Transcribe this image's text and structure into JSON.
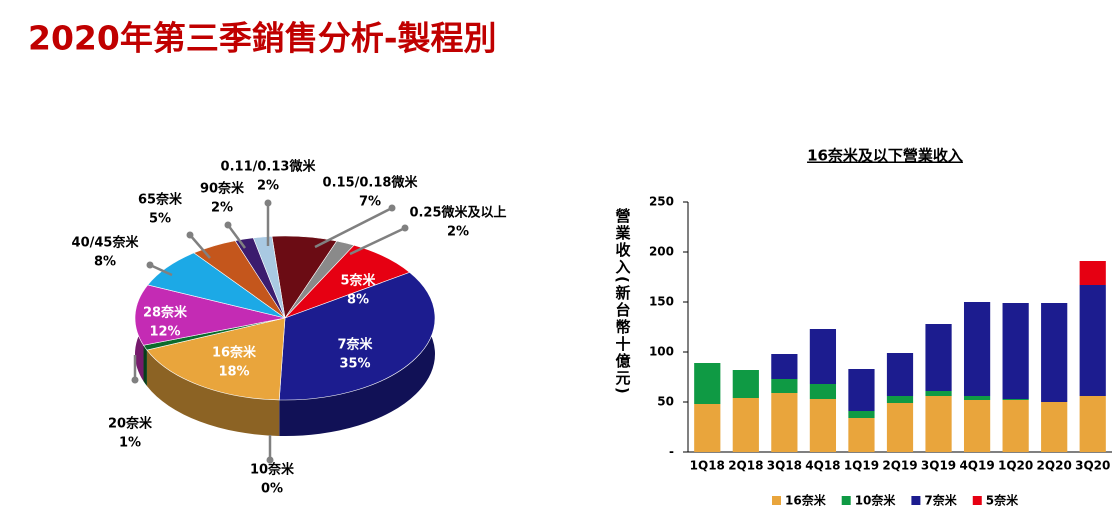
{
  "title": "2020年第三季銷售分析-製程別",
  "chart_data": [
    {
      "type": "pie",
      "categories": [
        "0.15/0.18微米",
        "0.25微米及以上",
        "5奈米",
        "7奈米",
        "16奈米",
        "20奈米",
        "10奈米",
        "28奈米",
        "40/45奈米",
        "65奈米",
        "90奈米",
        "0.11/0.13微米"
      ],
      "values": [
        7,
        2,
        8,
        35,
        18,
        1,
        0,
        12,
        8,
        5,
        2,
        2
      ],
      "value_labels": [
        "7%",
        "2%",
        "8%",
        "35%",
        "18%",
        "1%",
        "0%",
        "12%",
        "8%",
        "5%",
        "2%",
        "2%"
      ],
      "colors": [
        "#6b0c14",
        "#8a8a8a",
        "#e60012",
        "#1c1c8f",
        "#e9a53c",
        "#0b6b2c",
        "#14a050",
        "#c42bb4",
        "#1ca9e6",
        "#c4561c",
        "#3b1c6e",
        "#a9c9e2"
      ]
    },
    {
      "type": "bar",
      "title": "16奈米及以下營業收入",
      "ylabel": "營業收入(新台幣十億元)",
      "categories": [
        "1Q18",
        "2Q18",
        "3Q18",
        "4Q18",
        "1Q19",
        "2Q19",
        "3Q19",
        "4Q19",
        "1Q20",
        "2Q20",
        "3Q20"
      ],
      "series": [
        {
          "name": "16奈米",
          "color": "#e9a53c",
          "values": [
            48,
            54,
            59,
            53,
            34,
            49,
            56,
            52,
            52,
            50,
            56
          ]
        },
        {
          "name": "10奈米",
          "color": "#0f9a44",
          "values": [
            41,
            28,
            14,
            15,
            7,
            7,
            5,
            4,
            1,
            0,
            0
          ]
        },
        {
          "name": "7奈米",
          "color": "#1c1c8f",
          "values": [
            0,
            0,
            25,
            55,
            42,
            43,
            67,
            94,
            96,
            99,
            111
          ]
        },
        {
          "name": "5奈米",
          "color": "#e60012",
          "values": [
            0,
            0,
            0,
            0,
            0,
            0,
            0,
            0,
            0,
            0,
            24
          ]
        }
      ],
      "ylim": [
        0,
        250
      ],
      "yticks": [
        {
          "value": 0,
          "label": "-"
        },
        50,
        100,
        150,
        200,
        250
      ],
      "stacked": true,
      "legend": "bottom"
    }
  ]
}
